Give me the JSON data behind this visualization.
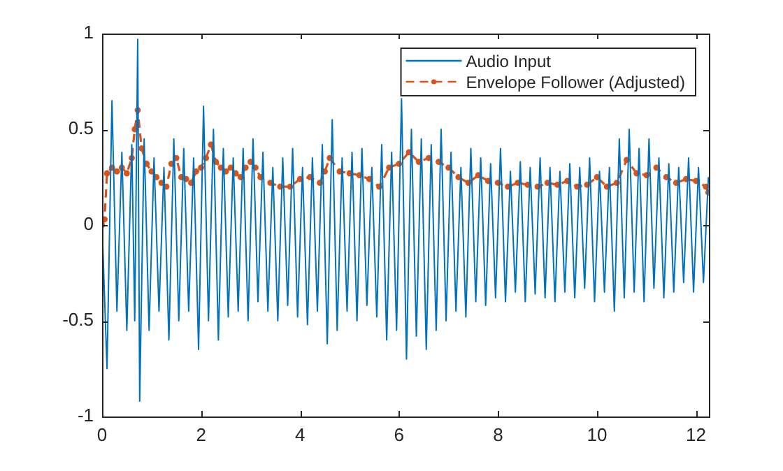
{
  "chart_data": {
    "type": "line",
    "xlim": [
      0,
      12.26
    ],
    "xticks": [
      0,
      2,
      4,
      6,
      8,
      10,
      12
    ],
    "ylim": [
      -1,
      1
    ],
    "yticks": [
      -1,
      -0.5,
      0,
      0.5,
      1
    ],
    "grid": false,
    "legend": "top right",
    "series": [
      {
        "name": "Audio Input",
        "color": "#0072bd",
        "line_style": "solid",
        "x": [
          0,
          0.1,
          0.2,
          0.3,
          0.4,
          0.5,
          0.6,
          0.66,
          0.72,
          0.76,
          0.85,
          0.95,
          1.05,
          1.15,
          1.25,
          1.35,
          1.45,
          1.55,
          1.65,
          1.75,
          1.85,
          1.95,
          2.05,
          2.15,
          2.25,
          2.35,
          2.45,
          2.55,
          2.65,
          2.75,
          2.85,
          2.95,
          3.05,
          3.15,
          3.25,
          3.35,
          3.45,
          3.55,
          3.65,
          3.75,
          3.85,
          3.95,
          4.05,
          4.15,
          4.25,
          4.35,
          4.45,
          4.55,
          4.65,
          4.75,
          4.85,
          4.95,
          5.05,
          5.15,
          5.25,
          5.35,
          5.45,
          5.55,
          5.65,
          5.75,
          5.85,
          5.95,
          6.05,
          6.15,
          6.25,
          6.35,
          6.45,
          6.55,
          6.65,
          6.75,
          6.85,
          6.95,
          7.05,
          7.15,
          7.25,
          7.35,
          7.45,
          7.55,
          7.65,
          7.75,
          7.85,
          7.95,
          8.05,
          8.15,
          8.25,
          8.35,
          8.45,
          8.55,
          8.65,
          8.75,
          8.85,
          8.95,
          9.05,
          9.15,
          9.25,
          9.35,
          9.45,
          9.55,
          9.65,
          9.75,
          9.85,
          9.95,
          10.05,
          10.15,
          10.25,
          10.35,
          10.45,
          10.55,
          10.65,
          10.75,
          10.85,
          10.95,
          11.05,
          11.15,
          11.25,
          11.35,
          11.45,
          11.55,
          11.65,
          11.75,
          11.85,
          11.95,
          12.05,
          12.15,
          12.25
        ],
        "values": [
          0,
          -0.75,
          0.65,
          -0.45,
          0.38,
          -0.55,
          0.42,
          -0.5,
          0.97,
          -0.92,
          0.45,
          -0.55,
          0.35,
          -0.45,
          0.3,
          -0.6,
          0.45,
          -0.5,
          0.4,
          -0.45,
          0.35,
          -0.65,
          0.62,
          -0.5,
          0.5,
          -0.6,
          0.4,
          -0.48,
          0.35,
          -0.45,
          0.4,
          -0.5,
          0.45,
          -0.4,
          0.38,
          -0.45,
          0.3,
          -0.5,
          0.35,
          -0.42,
          0.4,
          -0.48,
          0.3,
          -0.52,
          0.35,
          -0.45,
          0.42,
          -0.62,
          0.55,
          -0.55,
          0.35,
          -0.45,
          0.38,
          -0.5,
          0.4,
          -0.42,
          0.3,
          -0.48,
          0.42,
          -0.6,
          0.38,
          -0.55,
          0.66,
          -0.7,
          0.5,
          -0.58,
          0.45,
          -0.65,
          0.42,
          -0.55,
          0.5,
          -0.5,
          0.38,
          -0.45,
          0.3,
          -0.48,
          0.4,
          -0.4,
          0.35,
          -0.42,
          0.32,
          -0.38,
          0.4,
          -0.4,
          0.28,
          -0.35,
          0.33,
          -0.4,
          0.3,
          -0.36,
          0.35,
          -0.38,
          0.3,
          -0.4,
          0.28,
          -0.35,
          0.32,
          -0.38,
          0.3,
          -0.33,
          0.35,
          -0.4,
          0.28,
          -0.35,
          0.3,
          -0.45,
          0.45,
          -0.38,
          0.5,
          -0.35,
          0.4,
          -0.4,
          0.45,
          -0.33,
          0.35,
          -0.38,
          0.32,
          -0.35,
          0.3,
          -0.3,
          0.35,
          -0.35,
          0.3,
          -0.3,
          0.25
        ]
      },
      {
        "name": "Envelope Follower (Adjusted)",
        "color": "#d95319",
        "line_style": "dashed",
        "marker": "circle",
        "x": [
          0,
          0.05,
          0.1,
          0.2,
          0.3,
          0.4,
          0.5,
          0.6,
          0.66,
          0.72,
          0.8,
          0.9,
          1.0,
          1.1,
          1.2,
          1.3,
          1.4,
          1.5,
          1.6,
          1.7,
          1.8,
          1.9,
          2.0,
          2.1,
          2.2,
          2.3,
          2.4,
          2.5,
          2.6,
          2.7,
          2.8,
          2.9,
          3.0,
          3.1,
          3.2,
          3.4,
          3.6,
          3.8,
          4.0,
          4.2,
          4.4,
          4.5,
          4.6,
          4.8,
          5.0,
          5.2,
          5.4,
          5.6,
          5.8,
          6.0,
          6.2,
          6.4,
          6.6,
          6.8,
          7.0,
          7.2,
          7.4,
          7.6,
          7.8,
          8.0,
          8.2,
          8.4,
          8.6,
          8.8,
          9.0,
          9.2,
          9.4,
          9.6,
          9.8,
          10.0,
          10.2,
          10.4,
          10.6,
          10.8,
          11.0,
          11.2,
          11.4,
          11.6,
          11.8,
          12.0,
          12.2,
          12.25
        ],
        "values": [
          0,
          0.03,
          0.27,
          0.3,
          0.28,
          0.3,
          0.27,
          0.35,
          0.5,
          0.6,
          0.4,
          0.32,
          0.28,
          0.25,
          0.22,
          0.2,
          0.32,
          0.35,
          0.25,
          0.24,
          0.22,
          0.28,
          0.3,
          0.35,
          0.42,
          0.33,
          0.3,
          0.28,
          0.3,
          0.27,
          0.25,
          0.3,
          0.33,
          0.3,
          0.25,
          0.22,
          0.2,
          0.2,
          0.24,
          0.25,
          0.22,
          0.28,
          0.35,
          0.28,
          0.27,
          0.26,
          0.24,
          0.2,
          0.3,
          0.32,
          0.38,
          0.33,
          0.35,
          0.33,
          0.3,
          0.25,
          0.22,
          0.26,
          0.23,
          0.22,
          0.2,
          0.22,
          0.21,
          0.2,
          0.22,
          0.21,
          0.23,
          0.2,
          0.21,
          0.25,
          0.2,
          0.22,
          0.34,
          0.27,
          0.26,
          0.3,
          0.25,
          0.22,
          0.24,
          0.23,
          0.2,
          0.17
        ]
      }
    ]
  }
}
